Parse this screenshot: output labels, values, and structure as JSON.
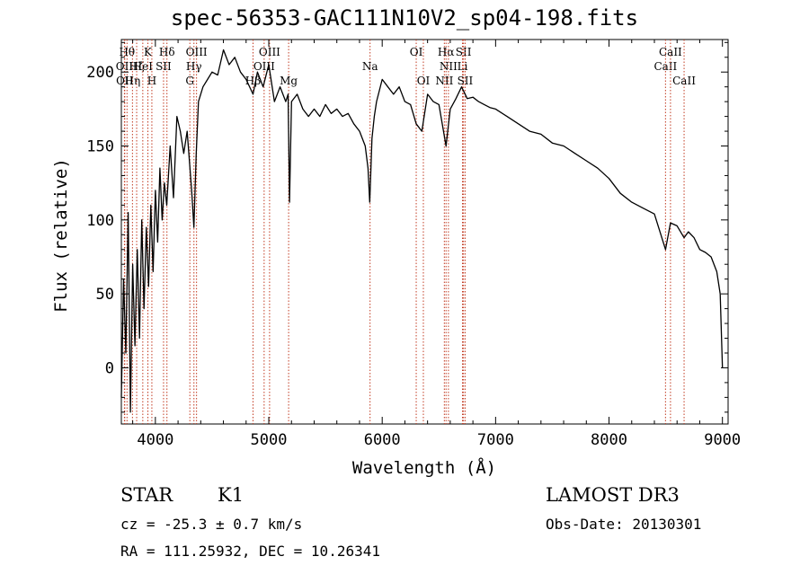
{
  "title": "spec-56353-GAC111N10V2_sp04-198.fits",
  "info": {
    "class": "STAR",
    "subclass": "K1",
    "survey": "LAMOST DR3",
    "cz": "cz = -25.3 ± 0.7 km/s",
    "obs_date": "Obs-Date: 20130301",
    "coords": "RA = 111.25932, DEC =  10.26341"
  },
  "chart_data": {
    "type": "line",
    "title": "spec-56353-GAC111N10V2_sp04-198.fits",
    "xlabel": "Wavelength (Å)",
    "ylabel": "Flux (relative)",
    "xlim": [
      3700,
      9050
    ],
    "ylim": [
      -38,
      222
    ],
    "xticks": [
      4000,
      5000,
      6000,
      7000,
      8000,
      9000
    ],
    "yticks": [
      0,
      50,
      100,
      150,
      200
    ],
    "series": [
      {
        "name": "flux",
        "x": [
          3700,
          3720,
          3740,
          3760,
          3780,
          3800,
          3820,
          3840,
          3860,
          3880,
          3900,
          3920,
          3940,
          3960,
          3980,
          4000,
          4020,
          4040,
          4060,
          4080,
          4100,
          4130,
          4160,
          4190,
          4220,
          4250,
          4280,
          4300,
          4320,
          4340,
          4360,
          4380,
          4420,
          4460,
          4500,
          4550,
          4600,
          4650,
          4700,
          4750,
          4800,
          4861,
          4900,
          4950,
          5000,
          5050,
          5100,
          5150,
          5170,
          5183,
          5200,
          5250,
          5300,
          5350,
          5400,
          5450,
          5500,
          5550,
          5600,
          5650,
          5700,
          5750,
          5800,
          5850,
          5875,
          5890,
          5896,
          5910,
          5930,
          5950,
          6000,
          6050,
          6100,
          6150,
          6200,
          6250,
          6300,
          6350,
          6400,
          6450,
          6500,
          6563,
          6600,
          6650,
          6700,
          6750,
          6800,
          6850,
          6900,
          6950,
          7000,
          7100,
          7200,
          7300,
          7400,
          7500,
          7600,
          7700,
          7800,
          7900,
          8000,
          8100,
          8200,
          8300,
          8400,
          8498,
          8542,
          8600,
          8662,
          8700,
          8750,
          8800,
          8850,
          8900,
          8950,
          8980,
          9000
        ],
        "y": [
          -20,
          60,
          10,
          105,
          -30,
          70,
          15,
          80,
          20,
          100,
          40,
          95,
          55,
          110,
          65,
          120,
          85,
          135,
          100,
          125,
          110,
          150,
          115,
          170,
          160,
          145,
          160,
          140,
          120,
          95,
          145,
          180,
          190,
          195,
          200,
          198,
          215,
          205,
          210,
          200,
          195,
          185,
          200,
          190,
          205,
          180,
          190,
          180,
          185,
          112,
          180,
          185,
          175,
          170,
          175,
          170,
          178,
          172,
          175,
          170,
          172,
          165,
          160,
          150,
          135,
          112,
          125,
          155,
          170,
          180,
          195,
          190,
          185,
          190,
          180,
          178,
          165,
          160,
          185,
          180,
          178,
          150,
          175,
          182,
          190,
          182,
          183,
          180,
          178,
          176,
          175,
          170,
          165,
          160,
          158,
          152,
          150,
          145,
          140,
          135,
          128,
          118,
          112,
          108,
          104,
          80,
          98,
          96,
          88,
          92,
          88,
          80,
          78,
          75,
          65,
          50,
          0
        ]
      }
    ],
    "line_markers": [
      {
        "wl": 3750,
        "row": 1,
        "label": "Hθ"
      },
      {
        "wl": 3727,
        "row": 2,
        "label": "OII"
      },
      {
        "wl": 3730,
        "row": 3,
        "label": "OII"
      },
      {
        "wl": 3798,
        "row": 3,
        "label": "Hη"
      },
      {
        "wl": 3835,
        "row": 2,
        "label": "Hζ"
      },
      {
        "wl": 3889,
        "row": 2,
        "label": "HeI"
      },
      {
        "wl": 3934,
        "row": 1,
        "label": "K"
      },
      {
        "wl": 3969,
        "row": 3,
        "label": "H"
      },
      {
        "wl": 4072,
        "row": 2,
        "label": "SII"
      },
      {
        "wl": 4102,
        "row": 1,
        "label": "Hδ"
      },
      {
        "wl": 4304,
        "row": 3,
        "label": "G"
      },
      {
        "wl": 4340,
        "row": 2,
        "label": "Hγ"
      },
      {
        "wl": 4363,
        "row": 1,
        "label": "OIII"
      },
      {
        "wl": 4861,
        "row": 3,
        "label": "Hβ"
      },
      {
        "wl": 4959,
        "row": 2,
        "label": "OIII"
      },
      {
        "wl": 5007,
        "row": 1,
        "label": "OIII"
      },
      {
        "wl": 5175,
        "row": 3,
        "label": "Mg"
      },
      {
        "wl": 5893,
        "row": 2,
        "label": "Na"
      },
      {
        "wl": 6300,
        "row": 1,
        "label": "OI"
      },
      {
        "wl": 6363,
        "row": 3,
        "label": "OI"
      },
      {
        "wl": 6548,
        "row": 3,
        "label": "NII"
      },
      {
        "wl": 6563,
        "row": 1,
        "label": "Hα"
      },
      {
        "wl": 6584,
        "row": 2,
        "label": "NII"
      },
      {
        "wl": 6708,
        "row": 2,
        "label": "Li"
      },
      {
        "wl": 6717,
        "row": 1,
        "label": "SII"
      },
      {
        "wl": 6731,
        "row": 3,
        "label": "SII"
      },
      {
        "wl": 8498,
        "row": 2,
        "label": "CaII"
      },
      {
        "wl": 8542,
        "row": 1,
        "label": "CaII"
      },
      {
        "wl": 8662,
        "row": 3,
        "label": "CaII"
      }
    ]
  }
}
